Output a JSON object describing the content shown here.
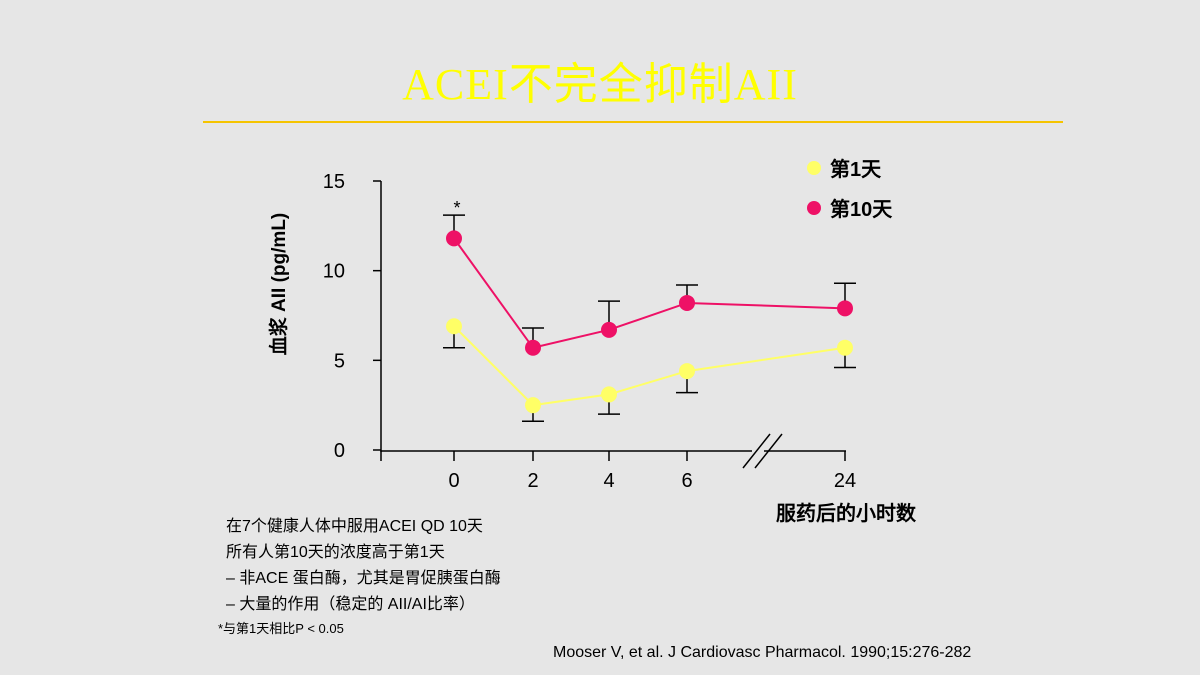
{
  "slide": {
    "title": "ACEI不完全抑制AII",
    "notes": [
      "在7个健康人体中服用ACEI QD 10天",
      " 所有人第10天的浓度高于第1天",
      " – 非ACE 蛋白酶，尤其是胃促胰蛋白酶",
      " – 大量的作用（稳定的 AII/AI比率）"
    ],
    "footnote": "*与第1天相比P < 0.05",
    "citation": "Mooser V, et al. J Cardiovasc Pharmacol. 1990;15:276-282"
  },
  "chart_data": {
    "type": "line",
    "title": "",
    "xlabel": "服药后的小时数",
    "ylabel": "血浆 AII (pg/mL)",
    "x": [
      0,
      2,
      4,
      6,
      24
    ],
    "x_tick_labels": [
      "0",
      "2",
      "4",
      "6",
      "24"
    ],
    "axis_break_between": [
      6,
      24
    ],
    "ylim": [
      0,
      15
    ],
    "y_ticks": [
      0,
      5,
      10,
      15
    ],
    "y_tick_labels": [
      "0",
      "5",
      "10",
      "15"
    ],
    "grid": false,
    "legend_position": "top-right",
    "series": [
      {
        "name": "第1天",
        "color": "#ffff66",
        "values": [
          6.9,
          2.5,
          3.1,
          4.4,
          5.7
        ],
        "error_upper": [
          null,
          null,
          null,
          null,
          null
        ],
        "error_lower": [
          5.7,
          1.6,
          2.0,
          3.2,
          4.6
        ]
      },
      {
        "name": "第10天",
        "color": "#ee1166",
        "values": [
          11.8,
          5.7,
          6.7,
          8.2,
          7.9
        ],
        "error_upper": [
          13.1,
          6.8,
          8.3,
          9.2,
          9.3
        ],
        "error_lower": [
          null,
          null,
          null,
          null,
          null
        ]
      }
    ],
    "annotations": [
      {
        "text": "*",
        "x": 0,
        "y": 13.6
      }
    ]
  }
}
